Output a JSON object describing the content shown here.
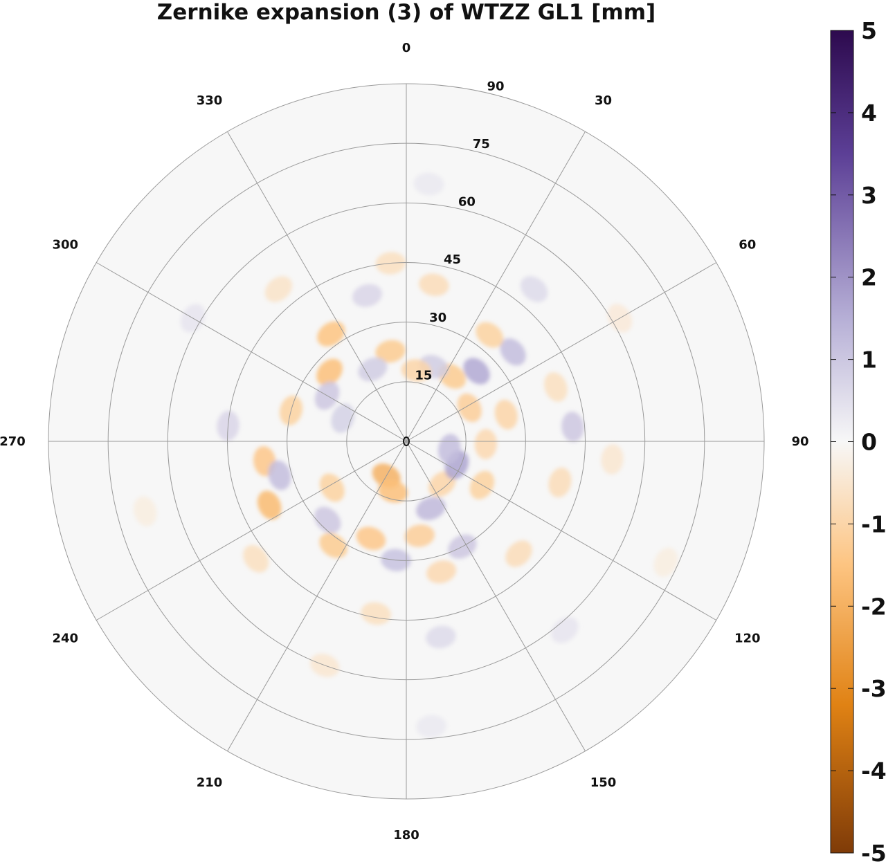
{
  "chart_data": {
    "type": "heatmap",
    "projection": "polar",
    "title": "Zernike expansion (3) of WTZZ GL1 [mm]",
    "azimuth_axis": {
      "direction": "clockwise",
      "zero_at": "top",
      "ticks": [
        0,
        30,
        60,
        90,
        120,
        150,
        180,
        210,
        240,
        270,
        300,
        330
      ]
    },
    "radial_axis": {
      "range": [
        0,
        90
      ],
      "ticks": [
        15,
        30,
        45,
        60,
        75,
        90
      ]
    },
    "colorbar": {
      "range": [
        -5,
        5
      ],
      "ticks": [
        5,
        4,
        3,
        2,
        1,
        0,
        -1,
        -2,
        -3,
        -4,
        -5
      ],
      "colors": {
        "max": "#2d0a4e",
        "high": "#5c3f96",
        "mid_high": "#b6afd6",
        "zero": "#f7f7f7",
        "mid_low": "#fdc481",
        "low": "#e08214",
        "min": "#7f3b08"
      }
    },
    "grid": true,
    "legend": "right",
    "grid_color": "#9a9a9a",
    "blobs": [
      {
        "az": 210,
        "r": 10,
        "v": -1.9,
        "s": 4
      },
      {
        "az": 195,
        "r": 13,
        "v": -1.6,
        "s": 4
      },
      {
        "az": 160,
        "r": 18,
        "v": 1.3,
        "s": 4
      },
      {
        "az": 140,
        "r": 14,
        "v": -1.0,
        "s": 4
      },
      {
        "az": 115,
        "r": 14,
        "v": 1.7,
        "s": 4
      },
      {
        "az": 100,
        "r": 11,
        "v": 1.2,
        "s": 4
      },
      {
        "az": 92,
        "r": 20,
        "v": -0.9,
        "s": 4
      },
      {
        "az": 120,
        "r": 22,
        "v": -1.1,
        "s": 4
      },
      {
        "az": 75,
        "r": 26,
        "v": -1.0,
        "s": 4
      },
      {
        "az": 62,
        "r": 18,
        "v": -1.2,
        "s": 4
      },
      {
        "az": 45,
        "r": 25,
        "v": 1.6,
        "s": 4
      },
      {
        "az": 50,
        "r": 35,
        "v": 1.2,
        "s": 4
      },
      {
        "az": 38,
        "r": 34,
        "v": -1.1,
        "s": 4
      },
      {
        "az": 35,
        "r": 20,
        "v": -1.3,
        "s": 4
      },
      {
        "az": 20,
        "r": 20,
        "v": 0.9,
        "s": 4
      },
      {
        "az": 8,
        "r": 18,
        "v": -1.0,
        "s": 4
      },
      {
        "az": 350,
        "r": 23,
        "v": -1.3,
        "s": 4
      },
      {
        "az": 335,
        "r": 20,
        "v": 0.9,
        "s": 4
      },
      {
        "az": 325,
        "r": 33,
        "v": -1.5,
        "s": 4
      },
      {
        "az": 312,
        "r": 26,
        "v": -1.6,
        "s": 4
      },
      {
        "az": 300,
        "r": 23,
        "v": 1.0,
        "s": 4
      },
      {
        "az": 290,
        "r": 17,
        "v": 0.8,
        "s": 4
      },
      {
        "az": 285,
        "r": 30,
        "v": -1.1,
        "s": 4
      },
      {
        "az": 262,
        "r": 36,
        "v": -1.4,
        "s": 4
      },
      {
        "az": 255,
        "r": 33,
        "v": 1.2,
        "s": 4
      },
      {
        "az": 245,
        "r": 38,
        "v": -1.7,
        "s": 4
      },
      {
        "az": 238,
        "r": 22,
        "v": -1.1,
        "s": 4
      },
      {
        "az": 225,
        "r": 28,
        "v": 1.0,
        "s": 4
      },
      {
        "az": 215,
        "r": 32,
        "v": -1.3,
        "s": 4
      },
      {
        "az": 200,
        "r": 26,
        "v": -1.4,
        "s": 4
      },
      {
        "az": 185,
        "r": 30,
        "v": 1.1,
        "s": 4
      },
      {
        "az": 172,
        "r": 24,
        "v": -1.2,
        "s": 4
      },
      {
        "az": 165,
        "r": 34,
        "v": -0.9,
        "s": 4
      },
      {
        "az": 152,
        "r": 30,
        "v": 1.0,
        "s": 4
      },
      {
        "az": 135,
        "r": 40,
        "v": -0.8,
        "s": 4
      },
      {
        "az": 105,
        "r": 40,
        "v": -0.8,
        "s": 4
      },
      {
        "az": 85,
        "r": 42,
        "v": 1.0,
        "s": 4
      },
      {
        "az": 70,
        "r": 40,
        "v": -0.7,
        "s": 4
      },
      {
        "az": 10,
        "r": 40,
        "v": -0.8,
        "s": 4
      },
      {
        "az": 355,
        "r": 45,
        "v": -0.7,
        "s": 4
      },
      {
        "az": 345,
        "r": 38,
        "v": 0.7,
        "s": 4
      },
      {
        "az": 275,
        "r": 45,
        "v": 0.7,
        "s": 4
      },
      {
        "az": 232,
        "r": 48,
        "v": -0.7,
        "s": 4
      },
      {
        "az": 190,
        "r": 44,
        "v": -0.7,
        "s": 4
      },
      {
        "az": 170,
        "r": 50,
        "v": 0.6,
        "s": 4
      },
      {
        "az": 95,
        "r": 52,
        "v": -0.5,
        "s": 4
      },
      {
        "az": 40,
        "r": 50,
        "v": 0.6,
        "s": 4
      },
      {
        "az": 320,
        "r": 50,
        "v": -0.6,
        "s": 4
      },
      {
        "az": 200,
        "r": 60,
        "v": -0.5,
        "s": 4
      },
      {
        "az": 300,
        "r": 62,
        "v": 0.4,
        "s": 4
      },
      {
        "az": 60,
        "r": 62,
        "v": -0.4,
        "s": 4
      },
      {
        "az": 140,
        "r": 62,
        "v": 0.4,
        "s": 4
      },
      {
        "az": 5,
        "r": 65,
        "v": 0.3,
        "s": 4
      },
      {
        "az": 255,
        "r": 68,
        "v": -0.3,
        "s": 4
      },
      {
        "az": 175,
        "r": 72,
        "v": 0.3,
        "s": 4
      },
      {
        "az": 115,
        "r": 72,
        "v": -0.3,
        "s": 4
      }
    ]
  }
}
